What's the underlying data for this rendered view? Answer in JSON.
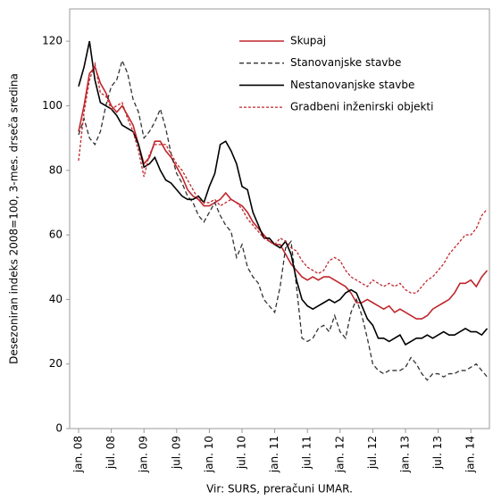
{
  "chart_data": {
    "type": "line",
    "y_label": "Desezoniran indeks 2008=100, 3-mes. drseča sredina",
    "source": "Vir: SURS, preračuni UMAR.",
    "categories": [
      "jan. 08",
      null,
      null,
      null,
      null,
      null,
      "jul. 08",
      null,
      null,
      null,
      null,
      null,
      "jan. 09",
      null,
      null,
      null,
      null,
      null,
      "jul. 09",
      null,
      null,
      null,
      null,
      null,
      "jan. 10",
      null,
      null,
      null,
      null,
      null,
      "jul. 10",
      null,
      null,
      null,
      null,
      null,
      "jan. 11",
      null,
      null,
      null,
      null,
      null,
      "jul. 11",
      null,
      null,
      null,
      null,
      null,
      "jan. 12",
      null,
      null,
      null,
      null,
      null,
      "jul. 12",
      null,
      null,
      null,
      null,
      null,
      "jan. 13",
      null,
      null,
      null,
      null,
      null,
      "jul. 13",
      null,
      null,
      null,
      null,
      null,
      "jan. 14",
      null,
      null,
      null
    ],
    "ylim": [
      0,
      130
    ],
    "yticks": [
      0,
      20,
      40,
      60,
      80,
      100,
      120
    ],
    "grid": false,
    "legend": "upper right",
    "series": [
      {
        "name": "Skupaj",
        "color": "#c0272d",
        "dash": "solid",
        "values": [
          92,
          100,
          110,
          112,
          107,
          104,
          100,
          98,
          100,
          97,
          94,
          88,
          82,
          84,
          89,
          89,
          86,
          84,
          81,
          78,
          74,
          72,
          71,
          69,
          69,
          70,
          71,
          73,
          71,
          70,
          69,
          67,
          64,
          62,
          60,
          58,
          57,
          57,
          54,
          51,
          49,
          47,
          46,
          47,
          46,
          47,
          47,
          46,
          45,
          44,
          42,
          39,
          39,
          40,
          39,
          38,
          37,
          38,
          36,
          37,
          36,
          35,
          34,
          34,
          35,
          37,
          38,
          39,
          40,
          42,
          45,
          45,
          46,
          44,
          47,
          49
        ]
      },
      {
        "name": "Stanovanjske stavbe",
        "color": "#333333",
        "dash": "dashed",
        "values": [
          91,
          96,
          90,
          88,
          92,
          100,
          106,
          108,
          114,
          110,
          102,
          98,
          90,
          92,
          95,
          99,
          93,
          85,
          79,
          76,
          72,
          70,
          66,
          64,
          67,
          70,
          66,
          63,
          61,
          53,
          57,
          50,
          47,
          45,
          40,
          38,
          36,
          44,
          56,
          58,
          44,
          28,
          27,
          28,
          31,
          32,
          30,
          35,
          30,
          28,
          36,
          40,
          35,
          28,
          20,
          18,
          17,
          18,
          18,
          18,
          19,
          22,
          20,
          17,
          15,
          17,
          17,
          16,
          17,
          17,
          18,
          18,
          19,
          20,
          18,
          16
        ]
      },
      {
        "name": "Nestanovanjske stavbe",
        "color": "#000000",
        "dash": "solid",
        "values": [
          106,
          112,
          120,
          108,
          101,
          100,
          99,
          97,
          94,
          93,
          92,
          88,
          81,
          82,
          84,
          80,
          77,
          76,
          74,
          72,
          71,
          71,
          72,
          70,
          75,
          79,
          88,
          89,
          86,
          82,
          75,
          74,
          67,
          63,
          59,
          59,
          57,
          56,
          58,
          54,
          46,
          40,
          38,
          37,
          38,
          39,
          40,
          39,
          40,
          42,
          43,
          42,
          38,
          34,
          32,
          28,
          28,
          27,
          28,
          29,
          26,
          27,
          28,
          28,
          29,
          28,
          29,
          30,
          29,
          29,
          30,
          31,
          30,
          30,
          29,
          31
        ]
      },
      {
        "name": "Gradbeni inženirski objekti",
        "color": "#c0272d",
        "dash": "dotted",
        "values": [
          83,
          98,
          108,
          113,
          104,
          103,
          99,
          100,
          101,
          96,
          92,
          86,
          78,
          85,
          88,
          88,
          88,
          85,
          82,
          80,
          77,
          74,
          71,
          70,
          70,
          71,
          69,
          70,
          71,
          70,
          68,
          65,
          63,
          61,
          59,
          58,
          57,
          59,
          58,
          56,
          55,
          52,
          50,
          49,
          48,
          49,
          52,
          53,
          52,
          49,
          47,
          46,
          45,
          44,
          46,
          45,
          44,
          45,
          44,
          45,
          43,
          42,
          42,
          44,
          46,
          47,
          49,
          51,
          54,
          56,
          58,
          60,
          60,
          62,
          66,
          68
        ]
      }
    ]
  }
}
